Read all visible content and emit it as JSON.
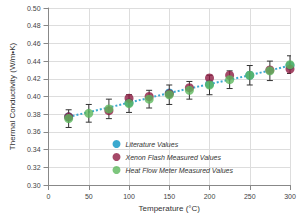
{
  "chart_data": {
    "type": "scatter",
    "x_label": "Temperature (°C)",
    "y_label": "Thermal Conductivity (W/m•K)",
    "xlim": [
      0,
      300
    ],
    "xticks": [
      0,
      50,
      100,
      150,
      200,
      250,
      300
    ],
    "ylim": [
      0.3,
      0.5
    ],
    "yticks": [
      {
        "value": 0.3,
        "label": "0.30"
      },
      {
        "value": 0.32,
        "label": "0.32"
      },
      {
        "value": 0.34,
        "label": "0.34"
      },
      {
        "value": 0.36,
        "label": "0.36"
      },
      {
        "value": 0.38,
        "label": "0.38"
      },
      {
        "value": 0.4,
        "label": "0.40"
      },
      {
        "value": 0.42,
        "label": "0.42"
      },
      {
        "value": 0.44,
        "label": "0.44"
      },
      {
        "value": 0.46,
        "label": "0.46"
      },
      {
        "value": 0.48,
        "label": "0.48"
      },
      {
        "value": 0.5,
        "label": "0.50"
      }
    ],
    "grid": true,
    "legend": "lower right",
    "series": [
      {
        "name": "Literature Values",
        "type": "line",
        "line_style": "dotted",
        "marker": "circle",
        "color": "#3ba9cf",
        "x": [
          25,
          100,
          150,
          200,
          250,
          300
        ],
        "values": [
          0.377,
          0.393,
          0.404,
          0.414,
          0.424,
          0.435
        ]
      },
      {
        "name": "Xenon Flash Measured Values",
        "type": "scatter",
        "marker": "circle",
        "color": "#8e1b42",
        "x": [
          25,
          75,
          100,
          125,
          150,
          175,
          200,
          225,
          275,
          300
        ],
        "values": [
          0.377,
          0.384,
          0.398,
          0.4,
          0.403,
          0.41,
          0.421,
          0.424,
          0.43,
          0.431
        ]
      },
      {
        "name": "Heat Flow Meter Measured Values",
        "type": "scatter",
        "marker": "circle",
        "color": "#5cb85c",
        "x": [
          25,
          50,
          75,
          100,
          125,
          150,
          175,
          200,
          225,
          250,
          275,
          300
        ],
        "values": [
          0.375,
          0.381,
          0.386,
          0.392,
          0.397,
          0.402,
          0.407,
          0.413,
          0.419,
          0.424,
          0.429,
          0.436
        ],
        "errors": [
          0.01,
          0.01,
          0.011,
          0.01,
          0.01,
          0.011,
          0.01,
          0.011,
          0.01,
          0.011,
          0.011,
          0.01
        ]
      }
    ]
  }
}
